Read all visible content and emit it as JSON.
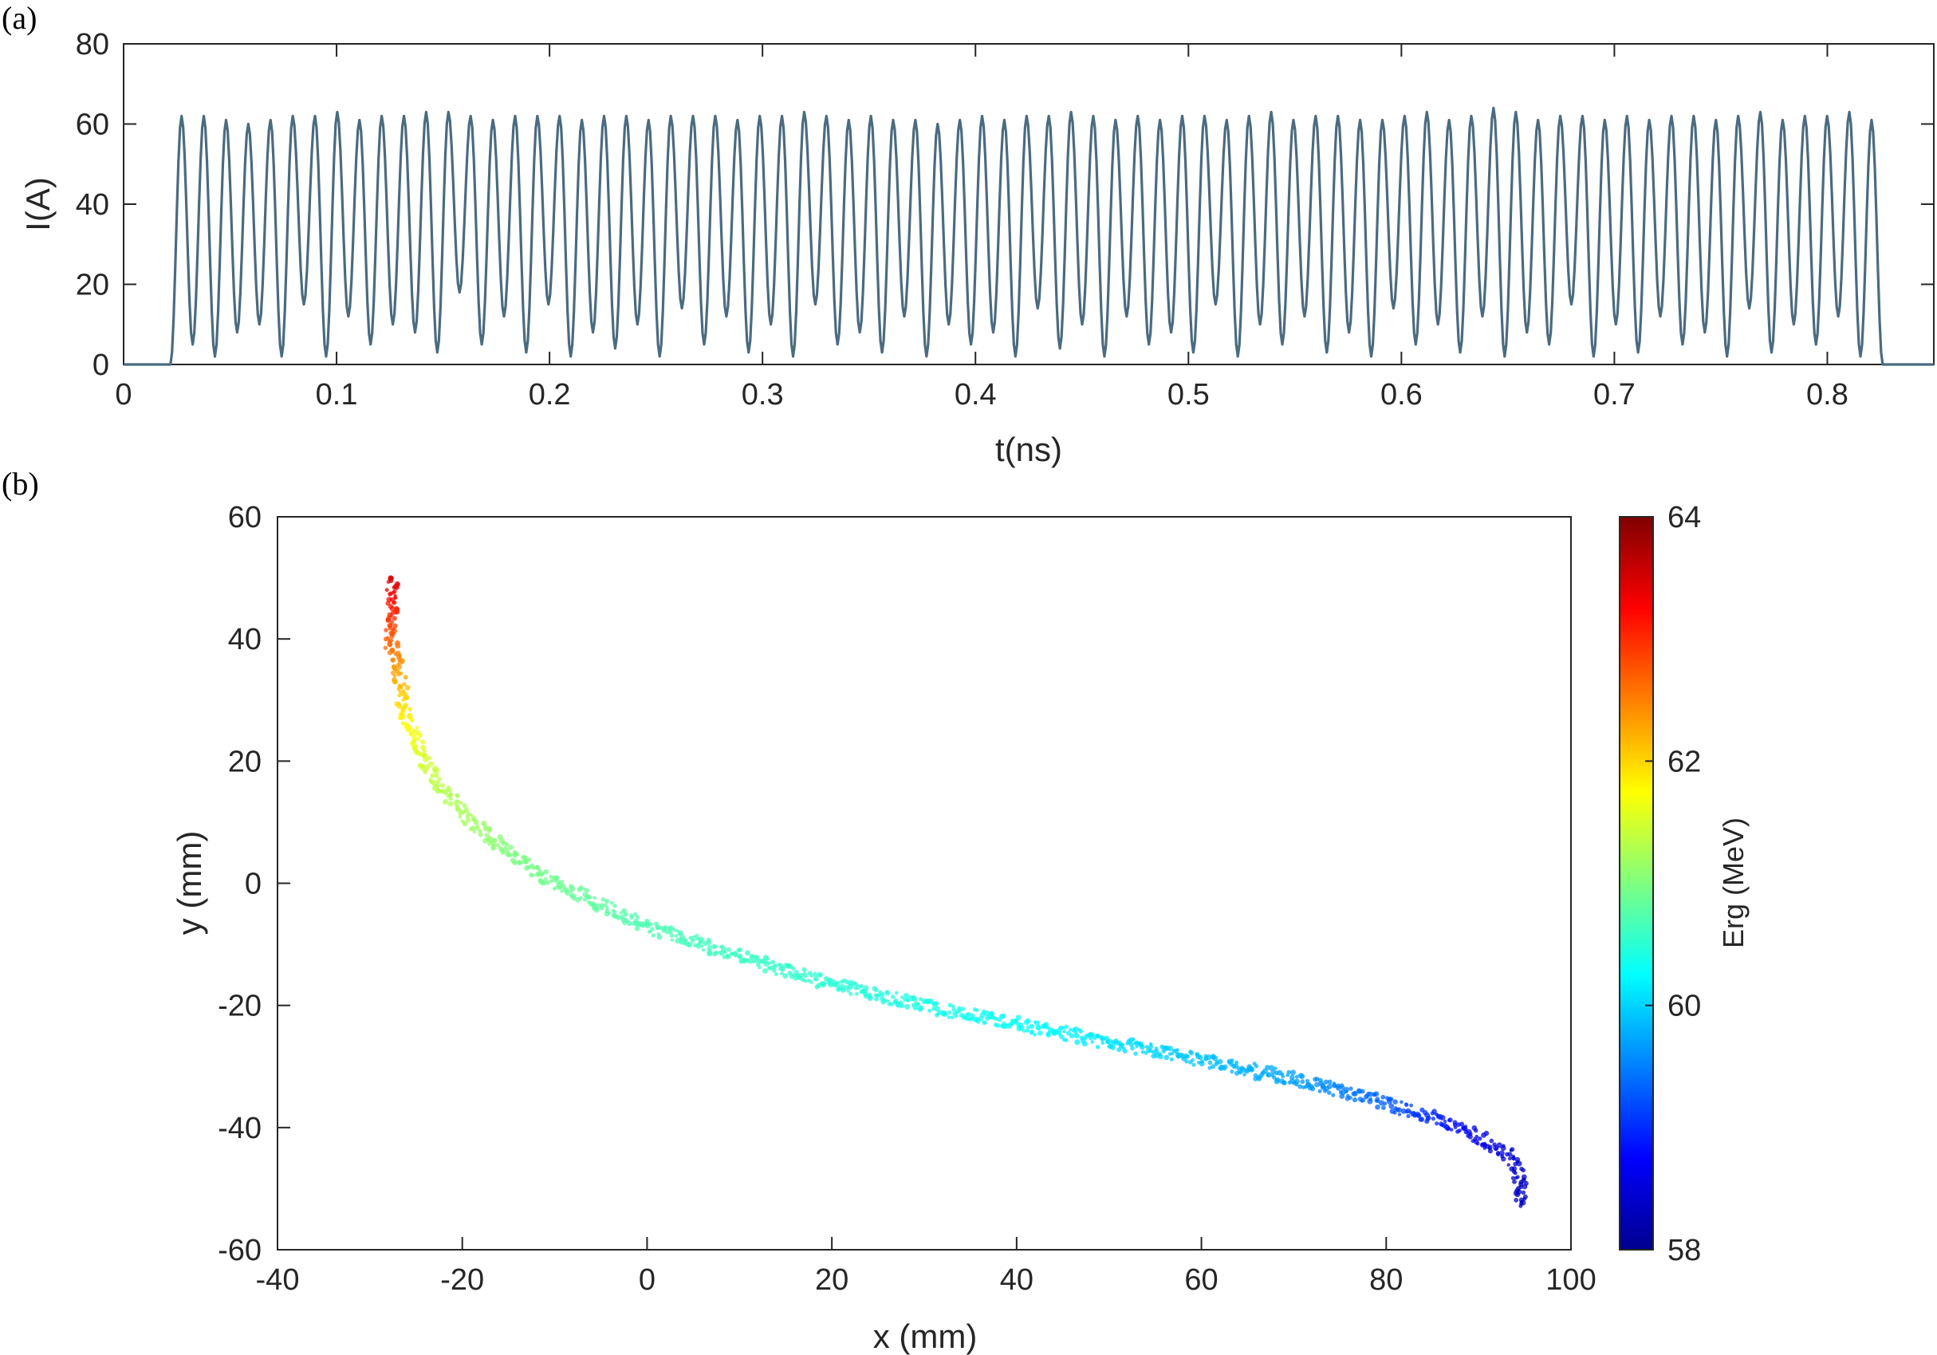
{
  "panel_labels": [
    "(a)",
    "(b)"
  ],
  "chart_data": [
    {
      "type": "line",
      "panel": "(a)",
      "title": "",
      "xlabel": "t(ns)",
      "ylabel": "I(A)",
      "xlim": [
        0,
        0.85
      ],
      "ylim": [
        0,
        80
      ],
      "xticks": [
        0,
        0.1,
        0.2,
        0.3,
        0.4,
        0.5,
        0.6,
        0.7,
        0.8
      ],
      "xtick_labels": [
        "0",
        "0.1",
        "0.2",
        "0.3",
        "0.4",
        "0.5",
        "0.6",
        "0.7",
        "0.8"
      ],
      "yticks": [
        0,
        20,
        40,
        60,
        80
      ],
      "ytick_labels": [
        "0",
        "20",
        "40",
        "60",
        "80"
      ],
      "grid": false,
      "line_color": "#4a6b80",
      "signal": {
        "description_of_shape": "modulated current, ~77 peaks between rise and fall",
        "t_start": 0.022,
        "t_end": 0.826,
        "peak_count": 77,
        "peak_values": [
          62,
          62,
          61,
          60,
          61,
          62,
          62,
          63,
          61,
          62,
          62,
          63,
          63,
          62,
          61,
          62,
          62,
          62,
          61,
          62,
          62,
          61,
          62,
          62,
          62,
          61,
          62,
          62,
          63,
          62,
          61,
          62,
          61,
          61,
          60,
          61,
          62,
          61,
          62,
          62,
          63,
          62,
          61,
          62,
          61,
          62,
          62,
          61,
          62,
          63,
          61,
          62,
          62,
          61,
          61,
          62,
          63,
          61,
          62,
          64,
          63,
          61,
          62,
          62,
          61,
          62,
          61,
          62,
          62,
          61,
          62,
          63,
          61,
          62,
          62,
          63,
          61
        ],
        "trough_values": [
          5,
          2,
          8,
          10,
          2,
          15,
          2,
          12,
          5,
          10,
          8,
          3,
          18,
          5,
          12,
          3,
          15,
          2,
          8,
          4,
          10,
          2,
          14,
          5,
          12,
          3,
          10,
          2,
          15,
          5,
          8,
          3,
          12,
          2,
          10,
          5,
          8,
          2,
          14,
          4,
          10,
          2,
          12,
          5,
          8,
          3,
          15,
          2,
          10,
          5,
          12,
          3,
          8,
          2,
          14,
          5,
          10,
          3,
          12,
          2,
          8,
          5,
          15,
          2,
          10,
          3,
          12,
          5,
          8,
          2,
          14,
          3,
          10,
          5,
          12,
          2,
          6
        ]
      }
    },
    {
      "type": "scatter",
      "panel": "(b)",
      "title": "",
      "xlabel": "x (mm)",
      "ylabel": "y (mm)",
      "xlim": [
        -40,
        100
      ],
      "ylim": [
        -60,
        60
      ],
      "xticks": [
        -40,
        -20,
        0,
        20,
        40,
        60,
        80,
        100
      ],
      "xtick_labels": [
        "-40",
        "-20",
        "0",
        "20",
        "40",
        "60",
        "80",
        "100"
      ],
      "yticks": [
        -60,
        -40,
        -20,
        0,
        20,
        40,
        60
      ],
      "ytick_labels": [
        "-60",
        "-40",
        "-20",
        "0",
        "20",
        "40",
        "60"
      ],
      "grid": false,
      "color_by": "Erg (MeV)",
      "colorbar": {
        "label": "Erg (MeV)",
        "range": [
          58,
          64
        ],
        "ticks": [
          58,
          60,
          62,
          64
        ],
        "tick_labels": [
          "58",
          "60",
          "62",
          "64"
        ],
        "colormap": "jet"
      },
      "trajectory": [
        {
          "x": -27.5,
          "y": 50,
          "erg": 63.5
        },
        {
          "x": -27.5,
          "y": 45,
          "erg": 63.1
        },
        {
          "x": -28,
          "y": 41,
          "erg": 62.8
        },
        {
          "x": -27,
          "y": 36,
          "erg": 62.4
        },
        {
          "x": -26.5,
          "y": 30,
          "erg": 62.0
        },
        {
          "x": -25.5,
          "y": 25,
          "erg": 61.7
        },
        {
          "x": -24,
          "y": 20,
          "erg": 61.5
        },
        {
          "x": -22,
          "y": 15,
          "erg": 61.3
        },
        {
          "x": -19,
          "y": 10,
          "erg": 61.2
        },
        {
          "x": -15,
          "y": 5,
          "erg": 61.0
        },
        {
          "x": -10,
          "y": 0,
          "erg": 60.9
        },
        {
          "x": -5,
          "y": -3.5,
          "erg": 60.8
        },
        {
          "x": 0,
          "y": -7,
          "erg": 60.7
        },
        {
          "x": 10,
          "y": -12,
          "erg": 60.6
        },
        {
          "x": 20,
          "y": -16.5,
          "erg": 60.5
        },
        {
          "x": 30,
          "y": -20,
          "erg": 60.4
        },
        {
          "x": 40,
          "y": -23,
          "erg": 60.3
        },
        {
          "x": 50,
          "y": -26,
          "erg": 60.1
        },
        {
          "x": 60,
          "y": -29,
          "erg": 59.9
        },
        {
          "x": 70,
          "y": -32,
          "erg": 59.7
        },
        {
          "x": 80,
          "y": -36,
          "erg": 59.3
        },
        {
          "x": 86,
          "y": -39,
          "erg": 58.9
        },
        {
          "x": 90,
          "y": -41.5,
          "erg": 58.6
        },
        {
          "x": 93,
          "y": -44,
          "erg": 58.5
        },
        {
          "x": 94.5,
          "y": -48,
          "erg": 58.4
        },
        {
          "x": 94.5,
          "y": -53,
          "erg": 58.4
        }
      ]
    }
  ]
}
